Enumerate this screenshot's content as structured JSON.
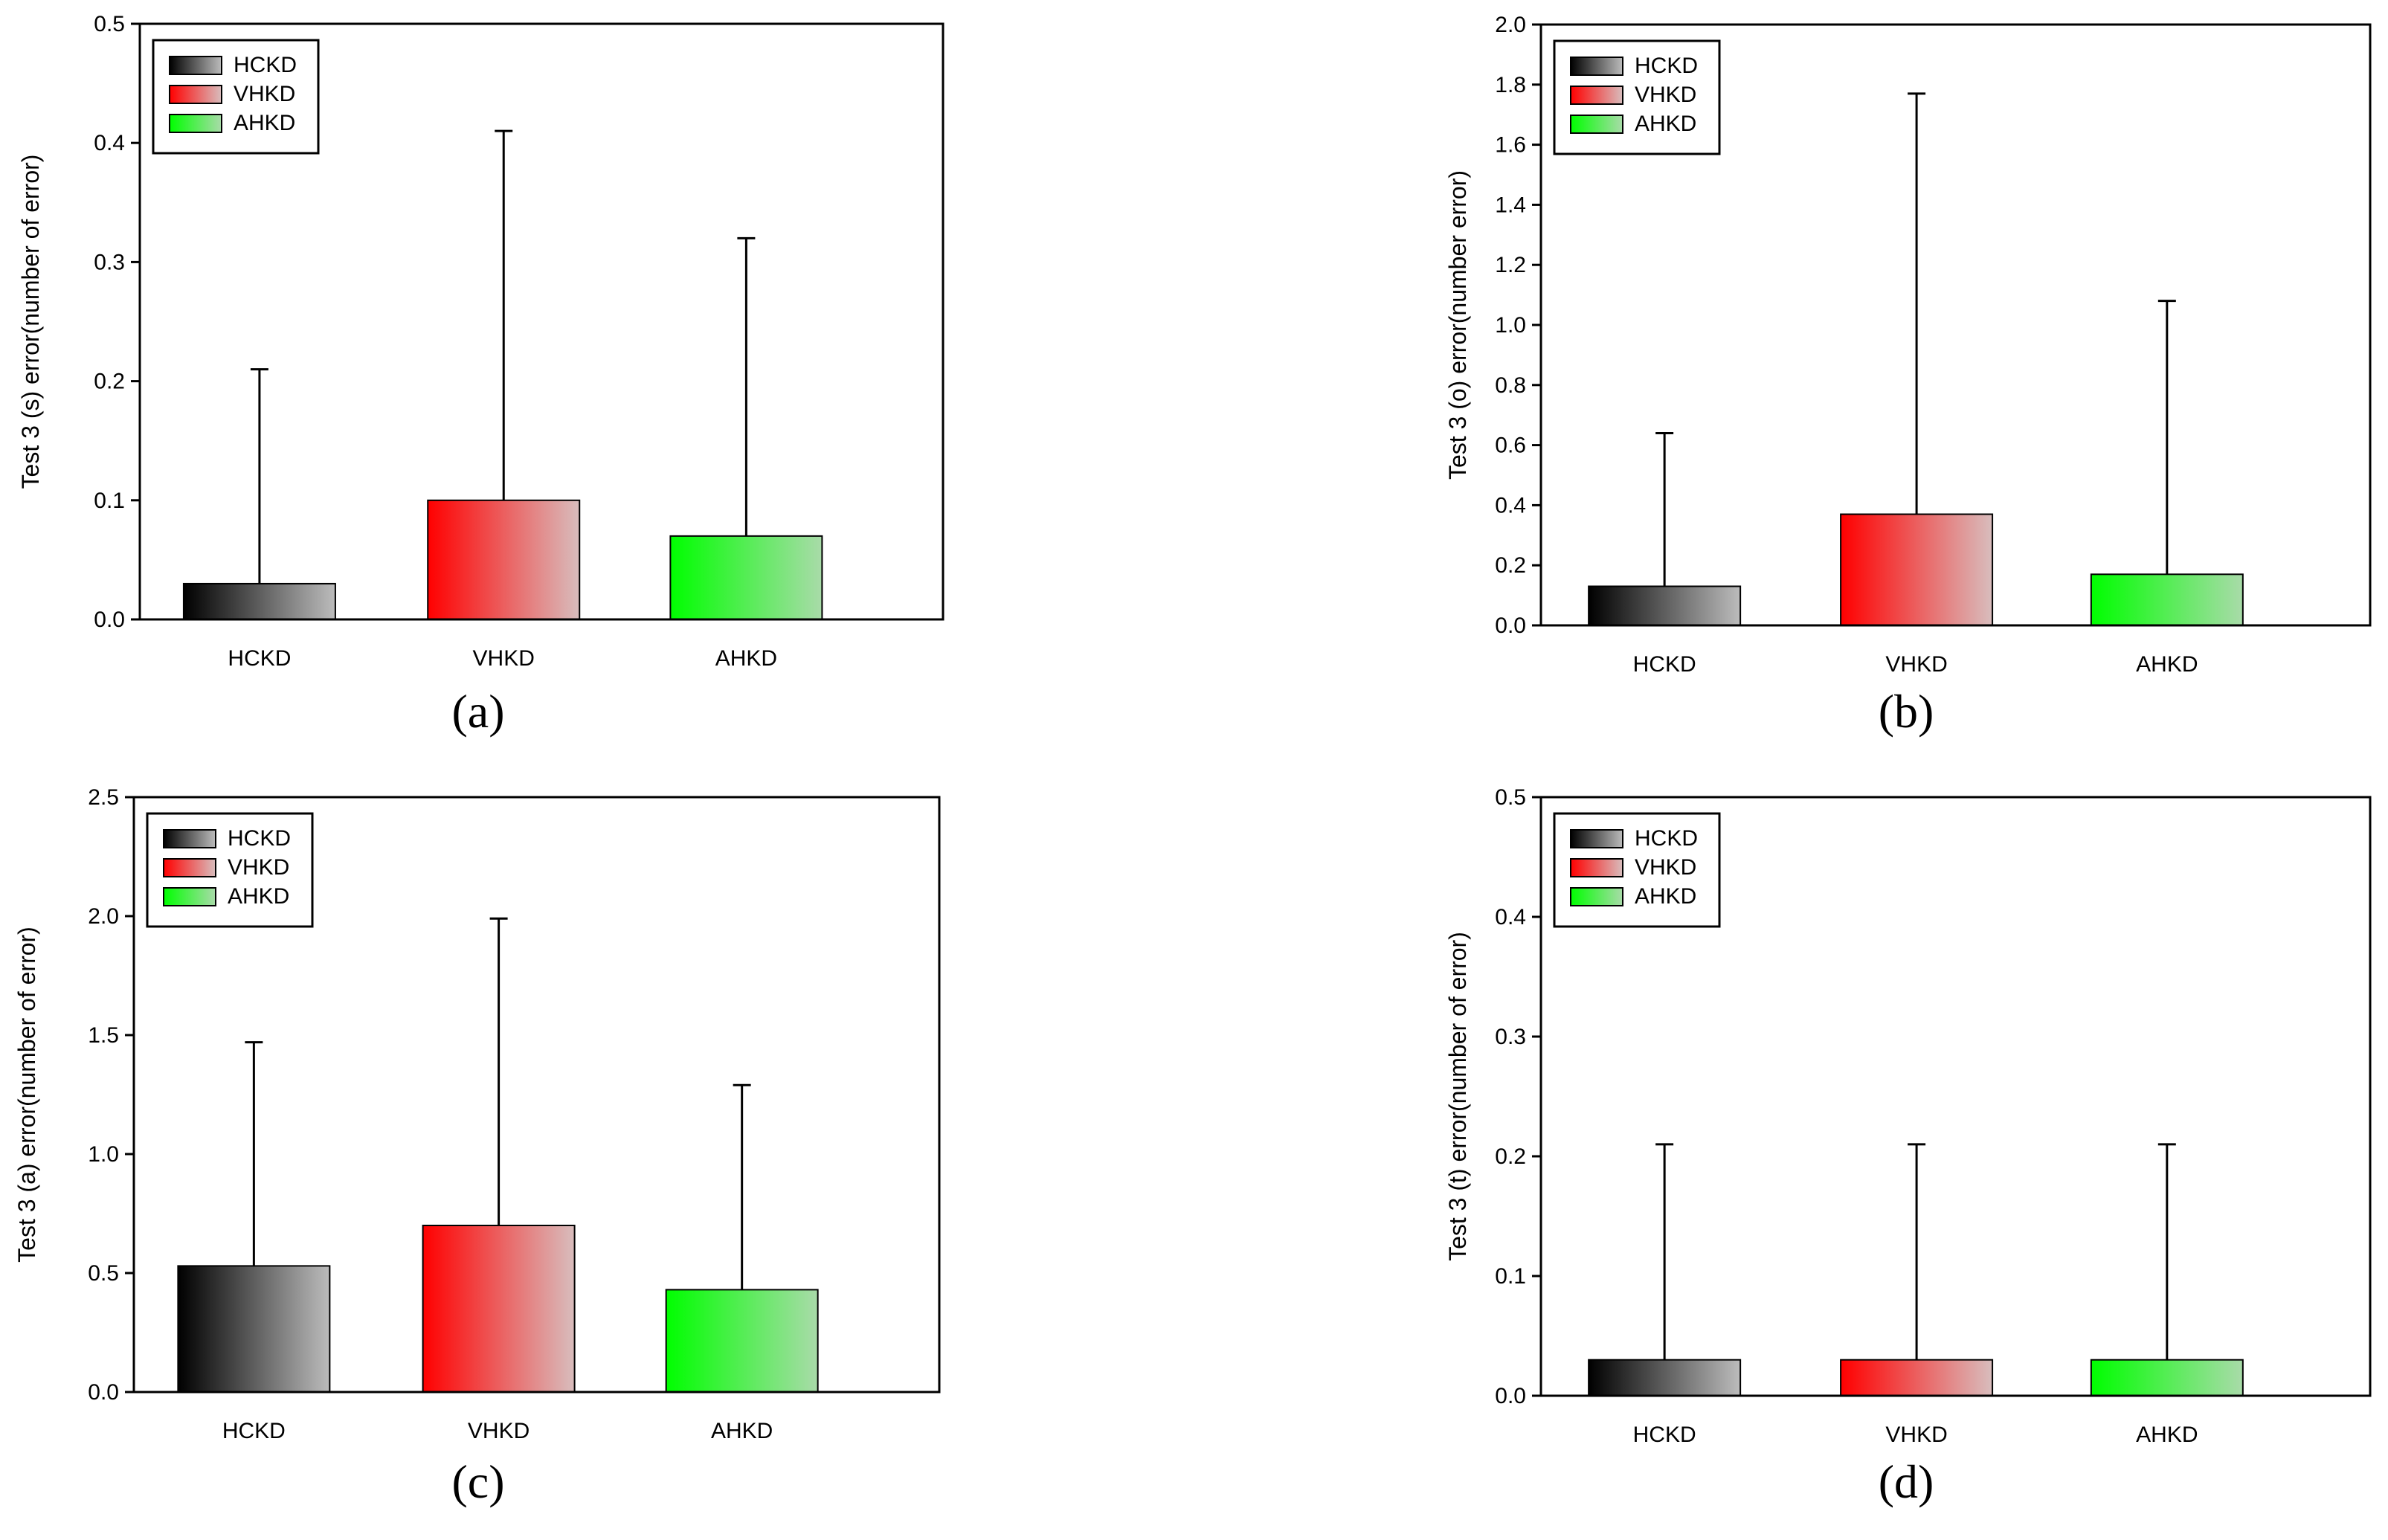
{
  "figure": {
    "panels": [
      "a",
      "b",
      "c",
      "d"
    ]
  },
  "legend_colors": {
    "HCKD": [
      "#000000",
      "#bcbcbc"
    ],
    "VHKD": [
      "#ff0000",
      "#d8bdbd"
    ],
    "AHKD": [
      "#00ff00",
      "#a9dba9"
    ]
  },
  "chart_data": [
    {
      "type": "bar",
      "panel_label": "(a)",
      "ylabel": "Test 3 (s) error(number of error)",
      "xlabel": "",
      "categories": [
        "HCKD",
        "VHKD",
        "AHKD"
      ],
      "values": [
        0.03,
        0.1,
        0.07
      ],
      "error_upper": [
        0.21,
        0.41,
        0.32
      ],
      "ylim": [
        0,
        0.5
      ],
      "yticks": [
        "0.0",
        "0.1",
        "0.2",
        "0.3",
        "0.4",
        "0.5"
      ],
      "legend": [
        "HCKD",
        "VHKD",
        "AHKD"
      ],
      "legend_position": "top-left",
      "grid": false
    },
    {
      "type": "bar",
      "panel_label": "(b)",
      "ylabel": "Test 3 (o) error(number error)",
      "xlabel": "",
      "categories": [
        "HCKD",
        "VHKD",
        "AHKD"
      ],
      "values": [
        0.13,
        0.37,
        0.17
      ],
      "error_upper": [
        0.64,
        1.77,
        1.08
      ],
      "ylim": [
        0,
        2.0
      ],
      "yticks": [
        "0.0",
        "0.2",
        "0.4",
        "0.6",
        "0.8",
        "1.0",
        "1.2",
        "1.4",
        "1.6",
        "1.8",
        "2.0"
      ],
      "legend": [
        "HCKD",
        "VHKD",
        "AHKD"
      ],
      "legend_position": "top-left",
      "grid": false
    },
    {
      "type": "bar",
      "panel_label": "(c)",
      "ylabel": "Test 3 (a) error(number of error)",
      "xlabel": "",
      "categories": [
        "HCKD",
        "VHKD",
        "AHKD"
      ],
      "values": [
        0.53,
        0.7,
        0.43
      ],
      "error_upper": [
        1.47,
        1.99,
        1.29
      ],
      "ylim": [
        0,
        2.5
      ],
      "yticks": [
        "0.0",
        "0.5",
        "1.0",
        "1.5",
        "2.0",
        "2.5"
      ],
      "legend": [
        "HCKD",
        "VHKD",
        "AHKD"
      ],
      "legend_position": "top-left",
      "grid": false
    },
    {
      "type": "bar",
      "panel_label": "(d)",
      "ylabel": "Test 3 (t) error(number of error)",
      "xlabel": "",
      "categories": [
        "HCKD",
        "VHKD",
        "AHKD"
      ],
      "values": [
        0.03,
        0.03,
        0.03
      ],
      "error_upper": [
        0.21,
        0.21,
        0.21
      ],
      "ylim": [
        0,
        0.5
      ],
      "yticks": [
        "0.0",
        "0.1",
        "0.2",
        "0.3",
        "0.4",
        "0.5"
      ],
      "legend": [
        "HCKD",
        "VHKD",
        "AHKD"
      ],
      "legend_position": "top-left",
      "grid": false
    }
  ]
}
